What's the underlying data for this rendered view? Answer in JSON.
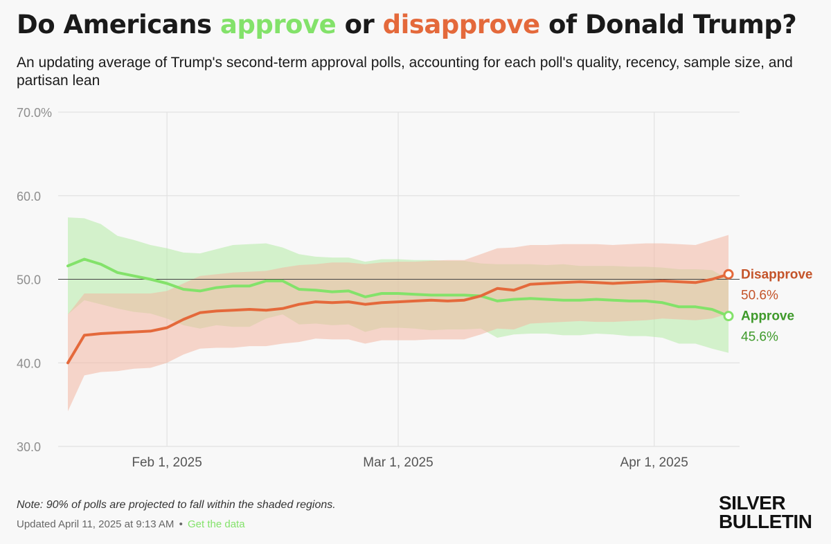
{
  "title": {
    "prefix": "Do Americans ",
    "approve_word": "approve",
    "middle": " or ",
    "disapprove_word": "disapprove",
    "suffix": " of Donald Trump?"
  },
  "subtitle": "An updating average of Trump's second-term approval polls, accounting for each poll's quality, recency, sample size, and partisan lean",
  "footer": {
    "note": "Note: 90% of polls are projected to fall within the shaded regions.",
    "updated": "Updated April 11, 2025 at 9:13 AM",
    "separator": "•",
    "link": "Get the data"
  },
  "brand": {
    "line1": "SILVER",
    "line2": "BULLETIN"
  },
  "colors": {
    "approve": "#83e26a",
    "approve_text": "#3f9a2b",
    "disapprove": "#e4693b",
    "disapprove_text": "#c4542a",
    "approve_band": "#b5eba6",
    "disapprove_band": "#f2b7a2"
  },
  "chart_data": {
    "type": "line",
    "title": "Do Americans approve or disapprove of Donald Trump?",
    "x_unit": "date",
    "x": [
      "2025-01-20",
      "2025-01-22",
      "2025-01-24",
      "2025-01-26",
      "2025-01-28",
      "2025-01-30",
      "2025-02-01",
      "2025-02-03",
      "2025-02-05",
      "2025-02-07",
      "2025-02-09",
      "2025-02-11",
      "2025-02-13",
      "2025-02-15",
      "2025-02-17",
      "2025-02-19",
      "2025-02-21",
      "2025-02-23",
      "2025-02-25",
      "2025-02-27",
      "2025-03-01",
      "2025-03-03",
      "2025-03-05",
      "2025-03-07",
      "2025-03-09",
      "2025-03-11",
      "2025-03-13",
      "2025-03-15",
      "2025-03-17",
      "2025-03-19",
      "2025-03-21",
      "2025-03-23",
      "2025-03-25",
      "2025-03-27",
      "2025-03-29",
      "2025-03-31",
      "2025-04-02",
      "2025-04-04",
      "2025-04-06",
      "2025-04-08",
      "2025-04-10"
    ],
    "xticks": [
      {
        "date": "2025-02-01",
        "label": "Feb 1, 2025"
      },
      {
        "date": "2025-03-01",
        "label": "Mar 1, 2025"
      },
      {
        "date": "2025-04-01",
        "label": "Apr 1, 2025"
      }
    ],
    "ylim": [
      30,
      70
    ],
    "yticks": [
      {
        "value": 70,
        "label": "70.0%"
      },
      {
        "value": 60,
        "label": "60.0"
      },
      {
        "value": 50,
        "label": "50.0"
      },
      {
        "value": 40,
        "label": "40.0"
      },
      {
        "value": 30,
        "label": "30.0"
      }
    ],
    "reference_line": 50,
    "shaded_bands": "90% of polls",
    "series": [
      {
        "name": "Approve",
        "color": "#83e26a",
        "end_label": "45.6%",
        "values": [
          51.6,
          52.4,
          51.8,
          50.8,
          50.4,
          50.0,
          49.5,
          48.8,
          48.6,
          49.0,
          49.2,
          49.2,
          49.8,
          49.8,
          48.8,
          48.7,
          48.5,
          48.6,
          47.9,
          48.3,
          48.3,
          48.2,
          48.1,
          48.1,
          48.1,
          48.0,
          47.4,
          47.6,
          47.7,
          47.6,
          47.5,
          47.5,
          47.6,
          47.5,
          47.4,
          47.4,
          47.2,
          46.7,
          46.7,
          46.4,
          45.6
        ],
        "upper": [
          57.4,
          57.3,
          56.6,
          55.2,
          54.7,
          54.1,
          53.7,
          53.2,
          53.1,
          53.6,
          54.1,
          54.2,
          54.3,
          53.8,
          53.0,
          52.7,
          52.6,
          52.6,
          52.1,
          52.4,
          52.4,
          52.3,
          52.3,
          52.2,
          52.2,
          51.9,
          51.8,
          51.8,
          51.8,
          51.7,
          51.8,
          51.6,
          51.6,
          51.6,
          51.5,
          51.5,
          51.4,
          51.2,
          51.2,
          51.1,
          50.0
        ],
        "lower": [
          45.8,
          47.5,
          47.0,
          46.5,
          46.1,
          45.9,
          45.3,
          44.5,
          44.1,
          44.5,
          44.3,
          44.3,
          45.3,
          45.8,
          44.6,
          44.7,
          44.5,
          44.6,
          43.7,
          44.2,
          44.2,
          44.1,
          43.9,
          44.0,
          44.0,
          44.1,
          43.0,
          43.4,
          43.5,
          43.5,
          43.3,
          43.3,
          43.5,
          43.4,
          43.2,
          43.2,
          43.0,
          42.3,
          42.3,
          41.7,
          41.2
        ]
      },
      {
        "name": "Disapprove",
        "color": "#e4693b",
        "end_label": "50.6%",
        "values": [
          40.0,
          43.3,
          43.5,
          43.6,
          43.7,
          43.8,
          44.2,
          45.2,
          46.0,
          46.2,
          46.3,
          46.4,
          46.3,
          46.5,
          47.0,
          47.3,
          47.2,
          47.3,
          47.0,
          47.2,
          47.3,
          47.4,
          47.5,
          47.4,
          47.5,
          48.0,
          48.9,
          48.7,
          49.4,
          49.5,
          49.6,
          49.7,
          49.6,
          49.5,
          49.6,
          49.7,
          49.8,
          49.7,
          49.6,
          50.0,
          50.6
        ],
        "upper": [
          45.8,
          48.3,
          48.3,
          48.3,
          48.3,
          48.3,
          48.6,
          49.5,
          50.4,
          50.6,
          50.8,
          50.9,
          51.0,
          51.4,
          51.7,
          51.8,
          52.0,
          52.0,
          51.8,
          52.0,
          52.1,
          52.1,
          52.2,
          52.3,
          52.3,
          53.0,
          53.7,
          53.8,
          54.1,
          54.1,
          54.2,
          54.2,
          54.2,
          54.1,
          54.2,
          54.3,
          54.3,
          54.2,
          54.1,
          54.7,
          55.3
        ],
        "lower": [
          34.2,
          38.5,
          38.9,
          39.0,
          39.3,
          39.4,
          40.0,
          41.0,
          41.7,
          41.8,
          41.8,
          42.0,
          42.0,
          42.3,
          42.5,
          42.9,
          42.8,
          42.8,
          42.3,
          42.7,
          42.7,
          42.7,
          42.8,
          42.8,
          42.8,
          43.4,
          44.1,
          44.0,
          44.7,
          44.8,
          44.9,
          45.0,
          44.9,
          44.9,
          45.0,
          45.1,
          45.3,
          45.2,
          45.1,
          45.3,
          45.9
        ]
      }
    ]
  }
}
